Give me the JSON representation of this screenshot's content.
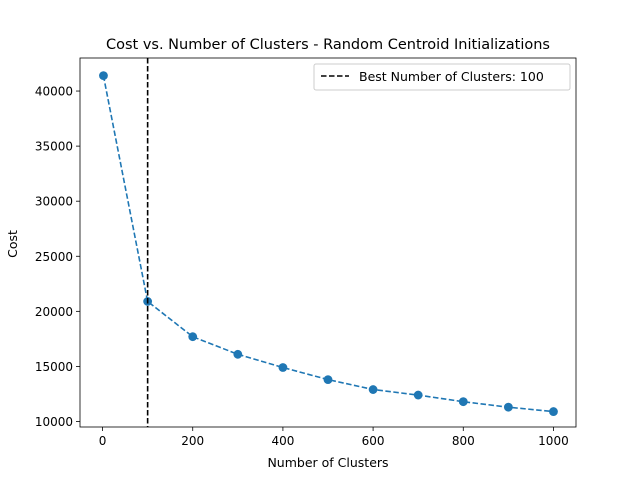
{
  "chart_data": {
    "type": "line",
    "title": "Cost vs. Number of Clusters - Random Centroid Initializations",
    "xlabel": "Number of Clusters",
    "ylabel": "Cost",
    "xlim": [
      -50,
      1050
    ],
    "ylim": [
      9500,
      43000
    ],
    "xticks": [
      0,
      200,
      400,
      600,
      800,
      1000
    ],
    "yticks": [
      10000,
      15000,
      20000,
      25000,
      30000,
      35000,
      40000
    ],
    "grid": false,
    "legend_position": "top-right",
    "series": [
      {
        "x": [
          2,
          100,
          200,
          300,
          400,
          500,
          600,
          700,
          800,
          900,
          1000
        ],
        "values": [
          41400,
          20900,
          17700,
          16100,
          14900,
          13800,
          12900,
          12400,
          11800,
          11300,
          10900
        ],
        "color": "#1f77b4",
        "line_style": "dashed",
        "marker": "circle"
      }
    ],
    "reference_line": {
      "x": 100,
      "label": "Best Number of Clusters: 100",
      "color": "#000000",
      "line_style": "dashed"
    }
  }
}
